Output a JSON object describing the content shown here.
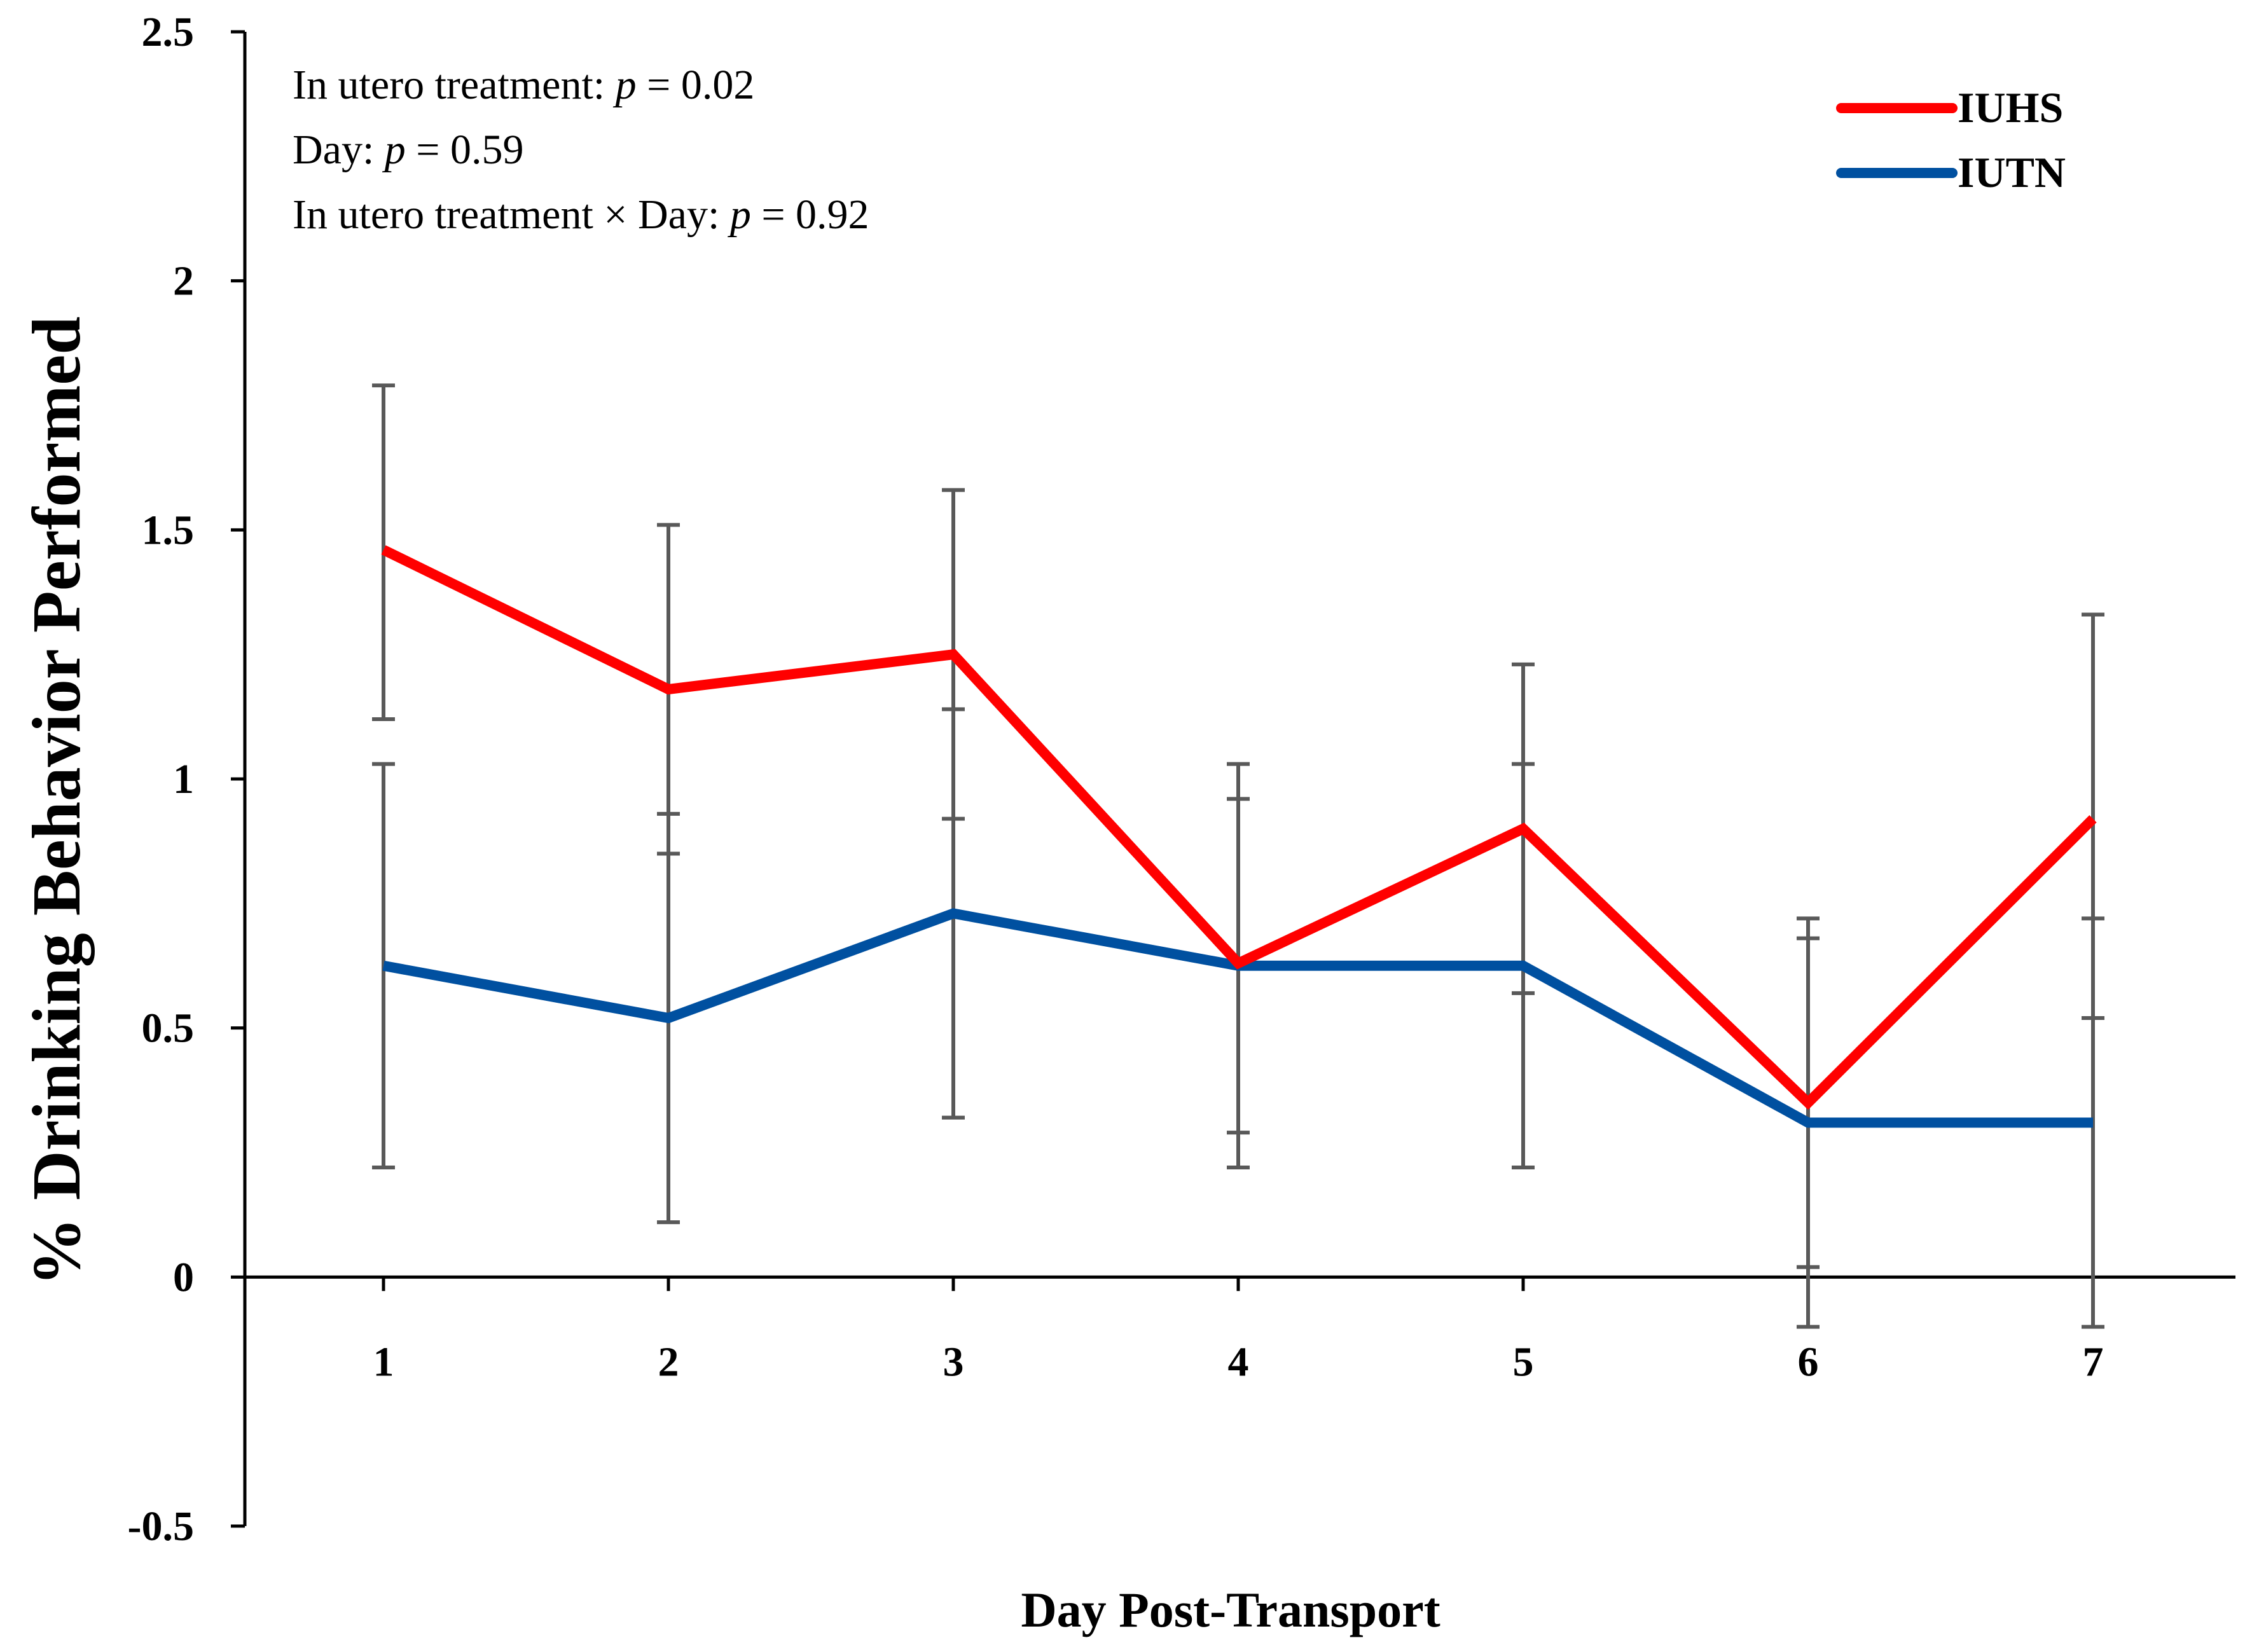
{
  "chart_data": {
    "type": "line",
    "xlabel": "Day Post-Transport",
    "ylabel": "% Drinking Behavior Performed",
    "ylim": [
      -0.5,
      2.5
    ],
    "yticks": [
      "-0.5",
      "0",
      "0.5",
      "1",
      "1.5",
      "2",
      "2.5"
    ],
    "categories": [
      "1",
      "2",
      "3",
      "4",
      "5",
      "6",
      "7"
    ],
    "grid": false,
    "legend_position": "top-right",
    "annotations": [
      {
        "prefix": "In utero treatment: ",
        "p": "p",
        "suffix": " = 0.02"
      },
      {
        "prefix": "Day: ",
        "p": "p",
        "suffix": " = 0.59"
      },
      {
        "prefix": "In utero treatment × Day: ",
        "p": "p",
        "suffix": " = 0.92"
      }
    ],
    "series": [
      {
        "name": "IUHS",
        "color": "#ff0000",
        "values": [
          1.46,
          1.18,
          1.25,
          0.63,
          0.9,
          0.35,
          0.92
        ],
        "error_low": [
          1.12,
          0.85,
          0.92,
          0.22,
          0.57,
          0.02,
          0.52
        ],
        "error_high": [
          1.79,
          1.51,
          1.58,
          1.03,
          1.23,
          0.68,
          1.33
        ]
      },
      {
        "name": "IUTN",
        "color": "#0050a0",
        "values": [
          0.625,
          0.52,
          0.73,
          0.625,
          0.625,
          0.31,
          0.31
        ],
        "error_low": [
          0.22,
          0.11,
          0.32,
          0.29,
          0.22,
          -0.1,
          -0.1
        ],
        "error_high": [
          1.03,
          0.93,
          1.14,
          0.96,
          1.03,
          0.72,
          0.72
        ]
      }
    ],
    "error_bar_color": "#595959"
  }
}
